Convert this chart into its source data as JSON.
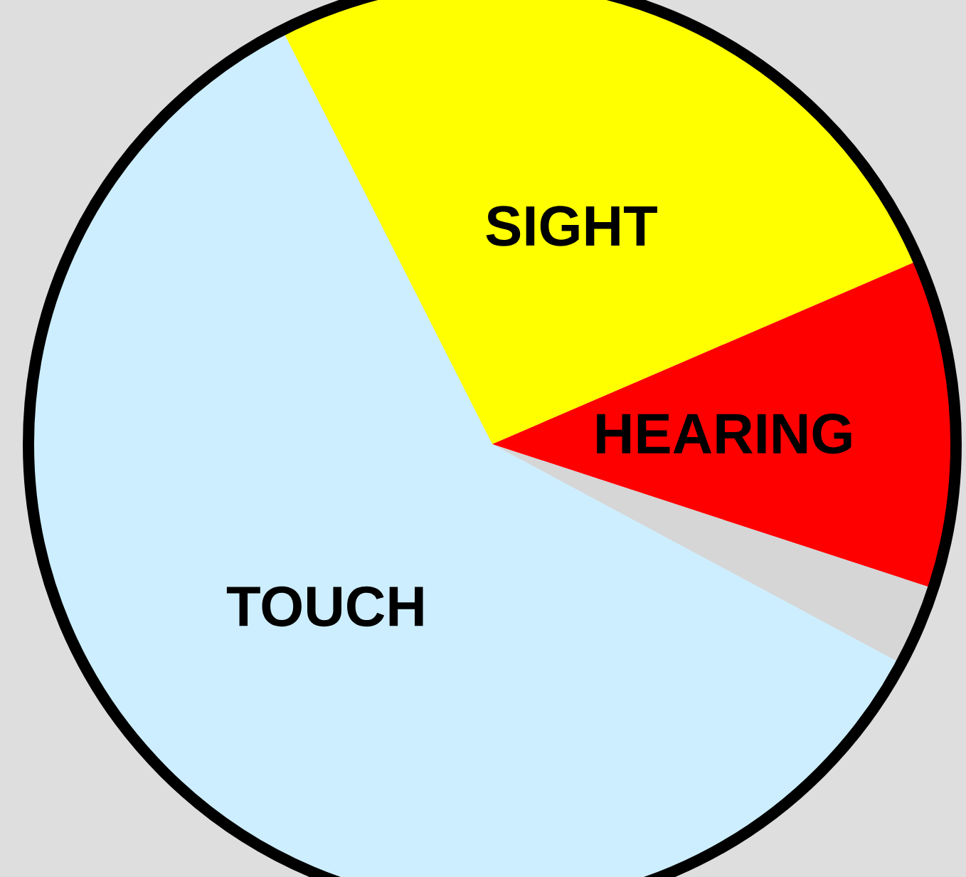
{
  "chart_data": {
    "type": "pie",
    "categories": [
      "SIGHT",
      "HEARING",
      null,
      "TOUCH"
    ],
    "values": [
      26,
      11.5,
      2.8,
      59.7
    ],
    "colors": [
      "#ffff00",
      "#ff0000",
      "#d6d6d6",
      "#cdeeff"
    ]
  }
}
